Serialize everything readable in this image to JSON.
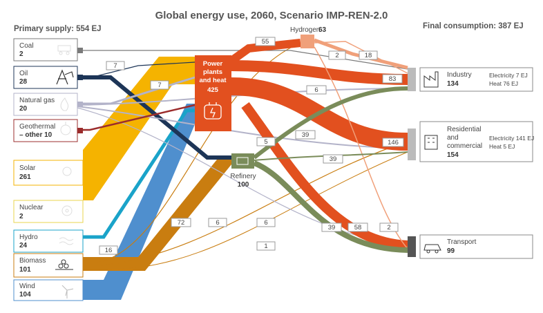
{
  "title": "Global energy use, 2060, Scenario IMP-REN-2.0",
  "primary_supply_label": "Primary supply: 554 EJ",
  "final_consumption_label": "Final consumption: 387 EJ",
  "sources": [
    {
      "name": "Coal",
      "value": "2",
      "color": "#7a7a7a",
      "icon": "coal-cart-icon"
    },
    {
      "name": "Oil",
      "value": "28",
      "color": "#1d3557",
      "icon": "oil-rig-icon"
    },
    {
      "name": "Natural gas",
      "value": "20",
      "color": "#b3b3c9",
      "icon": "gas-flame-icon"
    },
    {
      "name": "Geothermal",
      "name2": "– other 10",
      "value": "",
      "color": "#9b2c2c",
      "icon": "geothermal-icon"
    },
    {
      "name": "Solar",
      "value": "261",
      "color": "#f5b300",
      "icon": "sun-icon"
    },
    {
      "name": "Nuclear",
      "value": "2",
      "color": "#e8d44d",
      "icon": "nuclear-icon"
    },
    {
      "name": "Hydro",
      "value": "24",
      "color": "#1aa3c9",
      "icon": "waves-icon"
    },
    {
      "name": "Biomass",
      "value": "101",
      "color": "#c97d10",
      "icon": "logs-icon"
    },
    {
      "name": "Wind",
      "value": "104",
      "color": "#4f8fce",
      "icon": "wind-turbine-icon"
    }
  ],
  "intermediates": {
    "power": {
      "line1": "Power",
      "line2": "plants",
      "line3": "and heat",
      "value": "425"
    },
    "refinery": {
      "name": "Refinery",
      "value": "100"
    },
    "hydrogen": {
      "name": "Hydrogen",
      "value": "63"
    }
  },
  "sinks": [
    {
      "name": "Industry",
      "value": "134",
      "detail1": "Electricity 7 EJ",
      "detail2": "Heat 76 EJ",
      "icon": "factory-icon"
    },
    {
      "name": "Residential",
      "name2": "and",
      "name3": "commercial",
      "value": "154",
      "detail1": "Electricity 141 EJ",
      "detail2": "Heat 5 EJ",
      "icon": "building-icon"
    },
    {
      "name": "Transport",
      "value": "99",
      "icon": "car-icon"
    }
  ],
  "flow_labels": {
    "oil_power": "7",
    "gas_power": "7",
    "hydro_power": "16",
    "h2_power": "55",
    "h2_ind": "2",
    "h2_res": "18",
    "power_ind": "83",
    "gas_ind": "6",
    "power_res": "146",
    "gas_res": "5",
    "ref_ind": "39",
    "ref_res": "39",
    "bio_ref": "72",
    "bio_h2": "6",
    "bio_res": "6",
    "bio_trans": "1",
    "ref_trans": "39",
    "power_trans": "58",
    "h2_trans": "2"
  }
}
